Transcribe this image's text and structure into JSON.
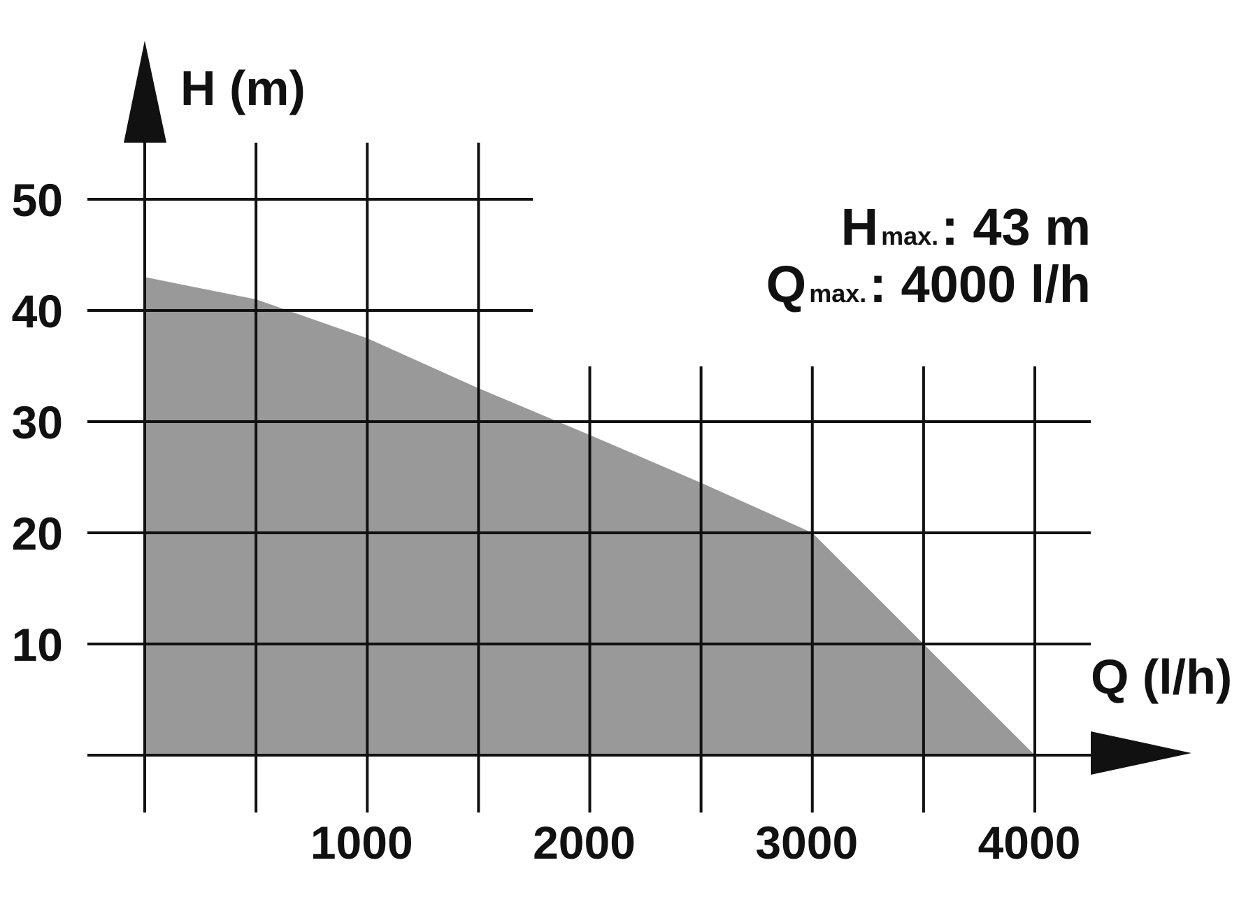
{
  "chart_data": {
    "type": "area",
    "y_title": "H (m)",
    "x_title": "Q (l/h)",
    "x_ticks": [
      1000,
      2000,
      3000,
      4000
    ],
    "y_ticks": [
      10,
      20,
      30,
      40,
      50
    ],
    "xlim": [
      0,
      4000
    ],
    "ylim": [
      0,
      50
    ],
    "grid": true,
    "curve": {
      "x": [
        0,
        500,
        1000,
        1500,
        2000,
        2500,
        3000,
        3500,
        4000
      ],
      "y": [
        43,
        41,
        37.5,
        33,
        28.8,
        24.5,
        20,
        10,
        0
      ]
    },
    "specs": [
      {
        "letter": "H",
        "sub": "max.",
        "value": ": 43 m"
      },
      {
        "letter": "Q",
        "sub": "max.",
        "value": ": 4000 l/h"
      }
    ],
    "colors": {
      "fill": "#999999",
      "line": "#111111"
    }
  }
}
